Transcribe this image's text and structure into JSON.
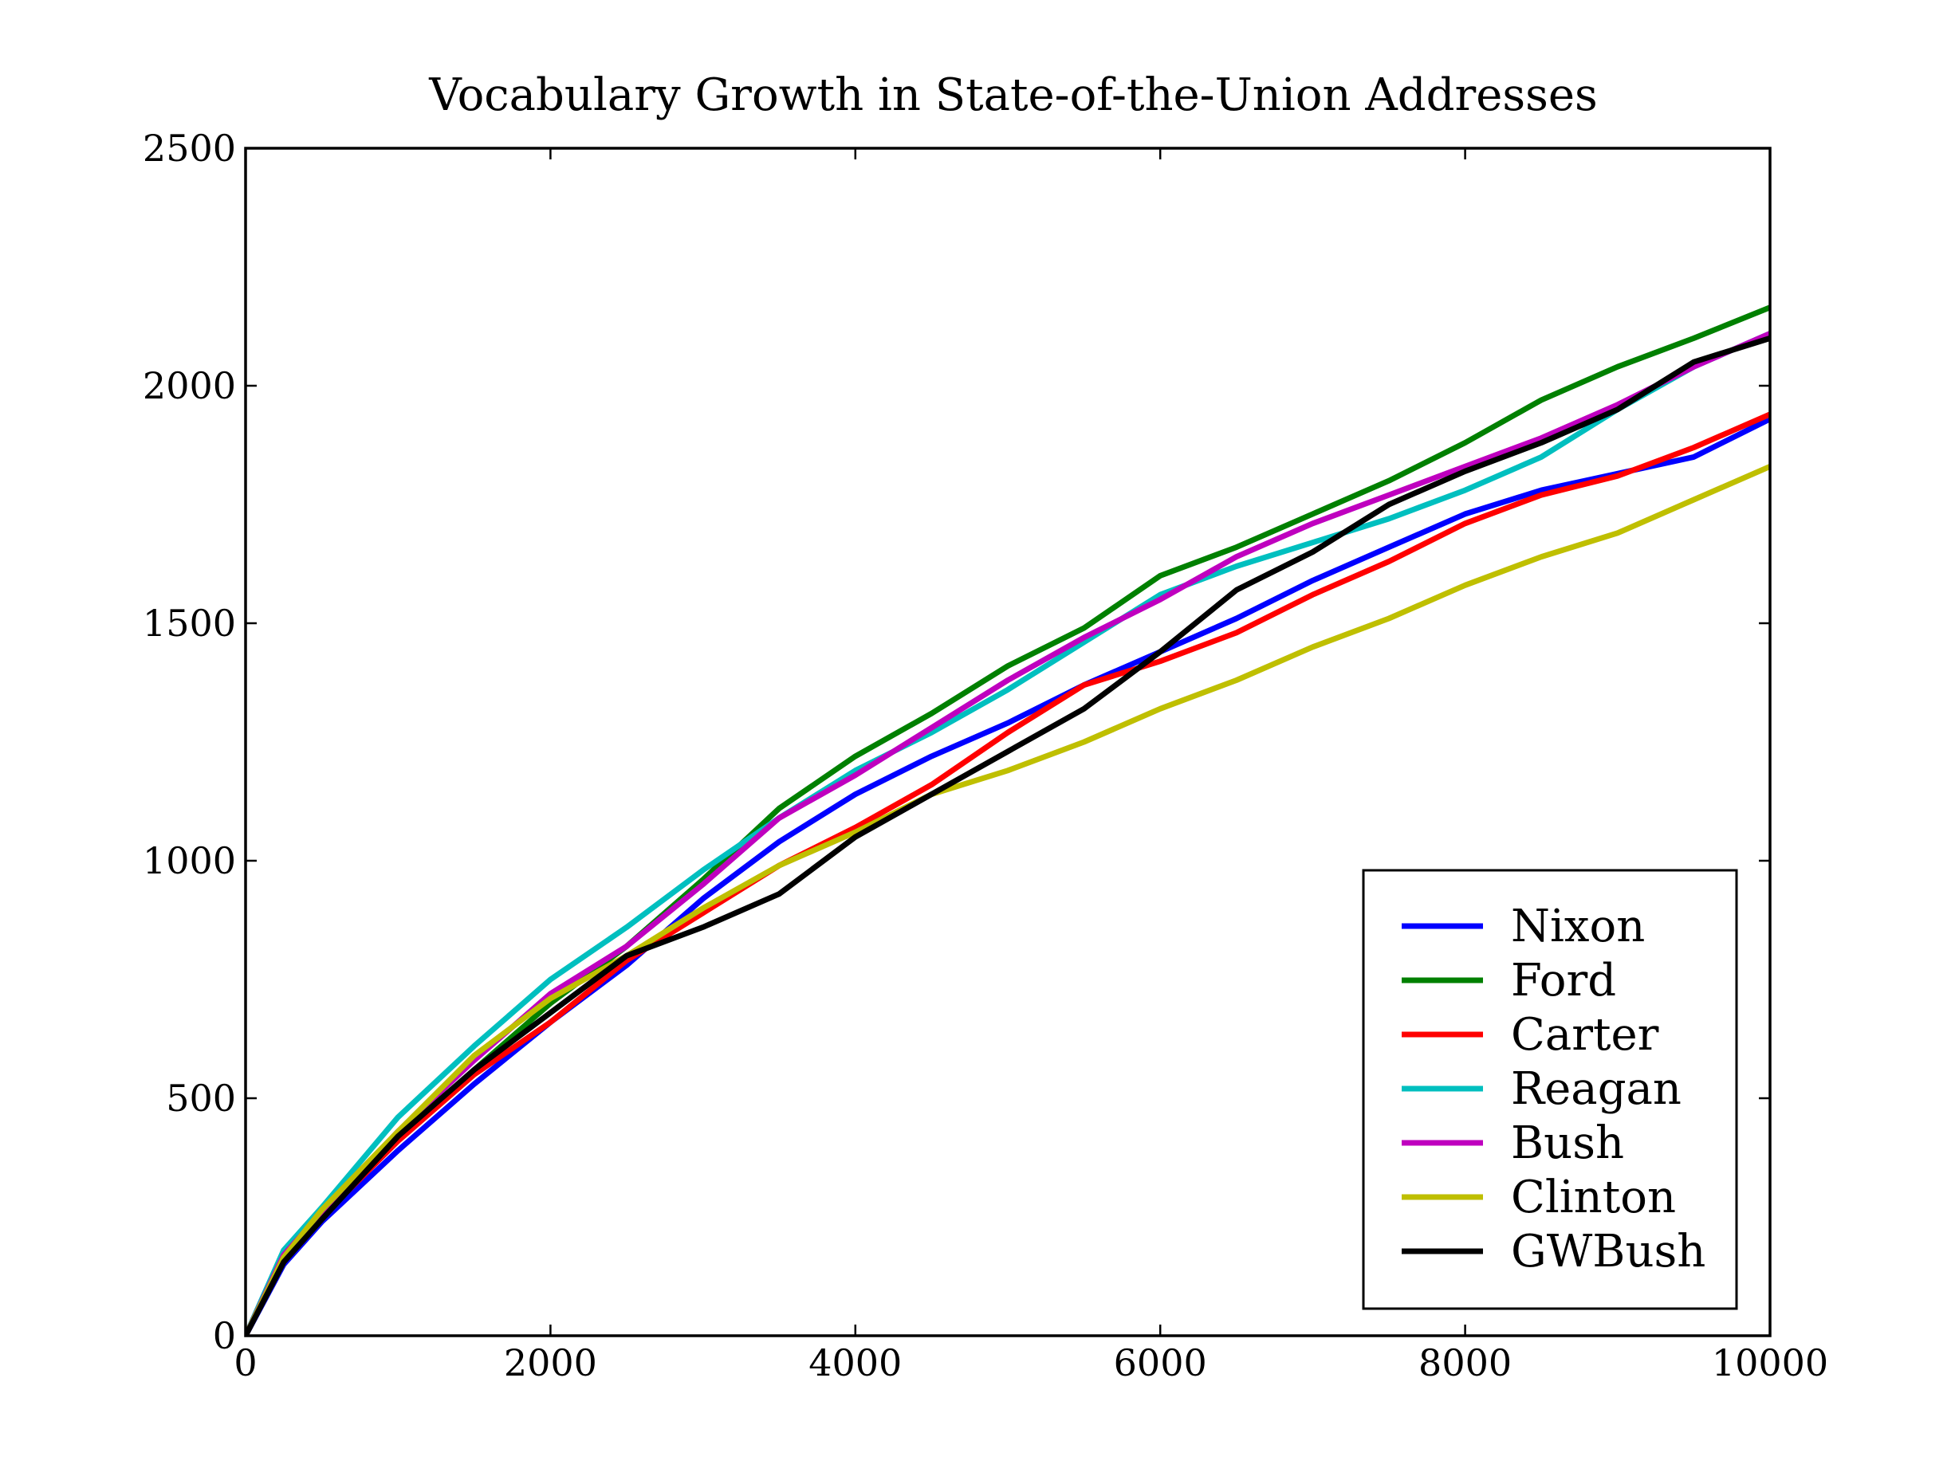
{
  "chart_data": {
    "type": "line",
    "title": "Vocabulary Growth in State-of-the-Union Addresses",
    "xlabel": "",
    "ylabel": "",
    "xlim": [
      0,
      10000
    ],
    "ylim": [
      0,
      2500
    ],
    "x_ticks": [
      "0",
      "2000",
      "4000",
      "6000",
      "8000",
      "10000"
    ],
    "y_ticks": [
      "0",
      "500",
      "1000",
      "1500",
      "2000",
      "2500"
    ],
    "grid": false,
    "legend_position": "bottom-right",
    "x": [
      0,
      250,
      500,
      1000,
      1500,
      2000,
      2500,
      3000,
      3500,
      4000,
      4500,
      5000,
      5500,
      6000,
      6500,
      7000,
      7500,
      8000,
      8500,
      9000,
      9500,
      10000
    ],
    "series": [
      {
        "name": "Nixon",
        "color": "#0000ff",
        "values": [
          0,
          150,
          240,
          390,
          530,
          660,
          780,
          920,
          1040,
          1140,
          1220,
          1290,
          1370,
          1440,
          1510,
          1590,
          1660,
          1730,
          1780,
          1815,
          1850,
          1930
        ]
      },
      {
        "name": "Ford",
        "color": "#008000",
        "values": [
          0,
          170,
          260,
          420,
          560,
          700,
          820,
          960,
          1110,
          1220,
          1310,
          1410,
          1490,
          1600,
          1660,
          1730,
          1800,
          1880,
          1970,
          2040,
          2100,
          2165
        ]
      },
      {
        "name": "Carter",
        "color": "#ff0000",
        "values": [
          0,
          160,
          250,
          410,
          550,
          660,
          790,
          890,
          990,
          1070,
          1160,
          1270,
          1370,
          1420,
          1480,
          1560,
          1630,
          1710,
          1770,
          1810,
          1870,
          1940
        ]
      },
      {
        "name": "Reagan",
        "color": "#00bfbf",
        "values": [
          0,
          180,
          270,
          460,
          610,
          750,
          860,
          980,
          1090,
          1190,
          1270,
          1360,
          1460,
          1560,
          1620,
          1670,
          1720,
          1780,
          1850,
          1950,
          2040,
          2110
        ]
      },
      {
        "name": "Bush",
        "color": "#bf00bf",
        "values": [
          0,
          170,
          260,
          430,
          580,
          720,
          820,
          950,
          1090,
          1180,
          1280,
          1380,
          1470,
          1550,
          1640,
          1710,
          1770,
          1830,
          1890,
          1960,
          2040,
          2110
        ]
      },
      {
        "name": "Clinton",
        "color": "#bfbf00",
        "values": [
          0,
          165,
          265,
          430,
          590,
          710,
          800,
          900,
          990,
          1060,
          1140,
          1190,
          1250,
          1320,
          1380,
          1450,
          1510,
          1580,
          1640,
          1690,
          1760,
          1830
        ]
      },
      {
        "name": "GWBush",
        "color": "#000000",
        "values": [
          0,
          155,
          245,
          420,
          560,
          680,
          800,
          860,
          930,
          1050,
          1140,
          1230,
          1320,
          1440,
          1570,
          1650,
          1750,
          1820,
          1880,
          1950,
          2050,
          2100
        ]
      }
    ]
  }
}
